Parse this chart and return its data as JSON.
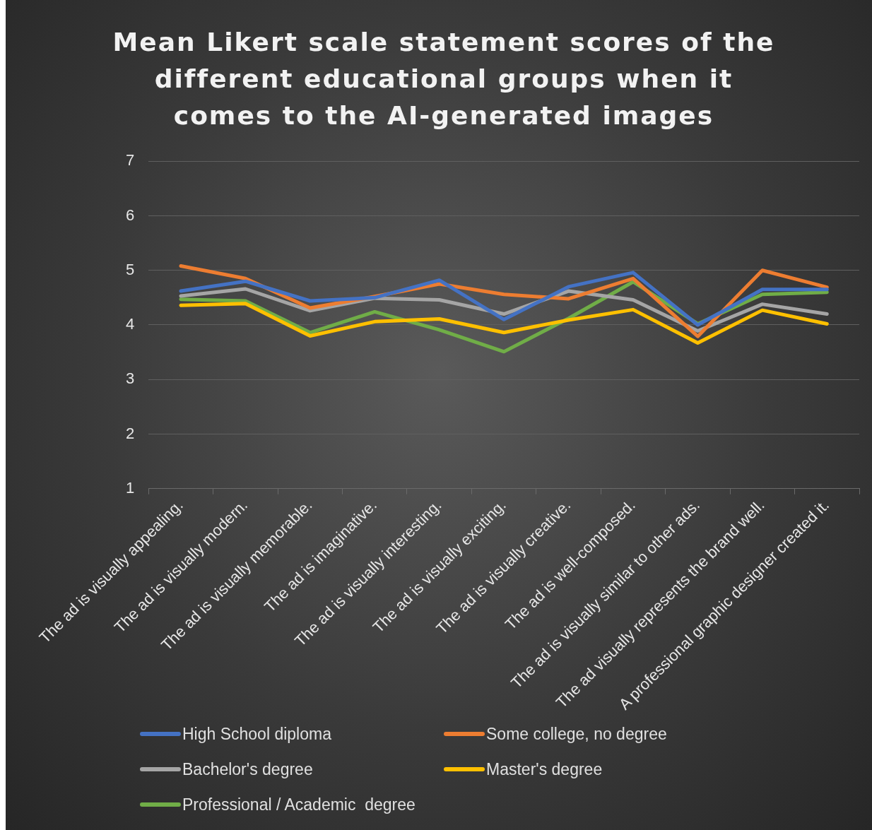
{
  "chart_data": {
    "type": "line",
    "title": "Mean Likert scale statement scores of the different educational groups when it comes to the AI-generated images",
    "categories": [
      "The ad is visually appealing.",
      "The ad is visually modern.",
      "The ad is visually memorable.",
      "The ad is imaginative.",
      "The ad is visually interesting.",
      "The ad is visually exciting.",
      "The ad is visually creative.",
      "The ad is well-composed.",
      "The ad is visually similar to other ads.",
      "The ad visually represents the brand well.",
      "A professional graphic designer created it."
    ],
    "series": [
      {
        "name": "High School diploma",
        "color": "#4472c4",
        "values": [
          4.62,
          4.8,
          4.44,
          4.5,
          4.82,
          4.1,
          4.7,
          4.96,
          4.0,
          4.65,
          4.65
        ]
      },
      {
        "name": "Some college, no degree",
        "color": "#ed7d31",
        "values": [
          5.08,
          4.85,
          4.31,
          4.52,
          4.75,
          4.56,
          4.48,
          4.85,
          3.79,
          5.0,
          4.69
        ]
      },
      {
        "name": "Bachelor's degree",
        "color": "#a5a5a5",
        "values": [
          4.53,
          4.66,
          4.26,
          4.49,
          4.46,
          4.2,
          4.62,
          4.46,
          3.89,
          4.38,
          4.2
        ]
      },
      {
        "name": "Master's degree",
        "color": "#ffc000",
        "values": [
          4.36,
          4.39,
          3.8,
          4.06,
          4.11,
          3.86,
          4.09,
          4.28,
          3.67,
          4.27,
          4.02
        ]
      },
      {
        "name": "Professional / Academic  degree",
        "color": "#70ad47",
        "values": [
          4.47,
          4.44,
          3.86,
          4.24,
          3.91,
          3.51,
          4.12,
          4.79,
          4.02,
          4.56,
          4.6
        ]
      }
    ],
    "ylim": [
      1,
      7
    ],
    "yticks": [
      1,
      2,
      3,
      4,
      5,
      6,
      7
    ],
    "grid": "y",
    "legend": "bottom",
    "marker": "none",
    "line_style": "solid"
  }
}
